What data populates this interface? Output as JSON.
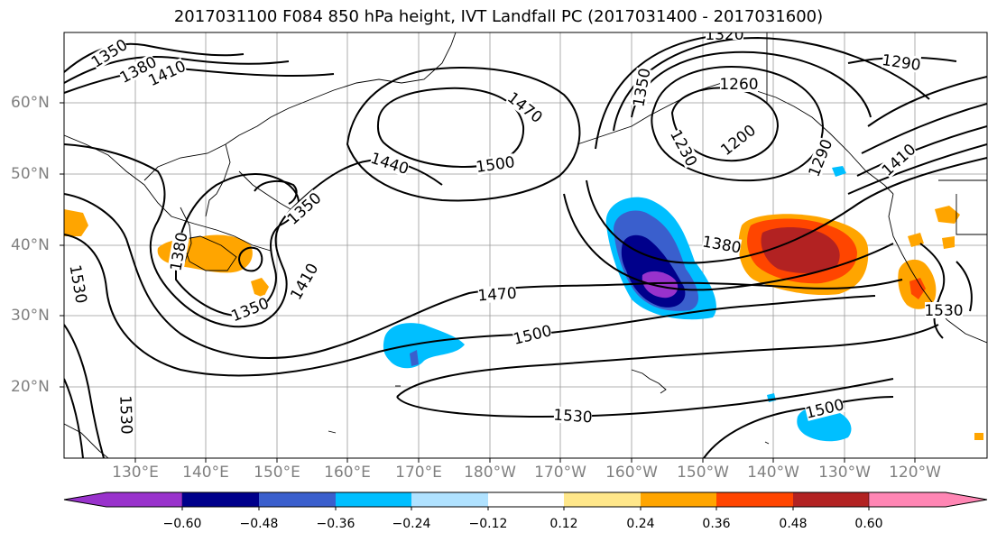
{
  "title": "2017031100 F084 850 hPa height, IVT Landfall PC (2017031400 - 2017031600)",
  "lat_labels": [
    "60°N",
    "50°N",
    "40°N",
    "30°N",
    "20°N"
  ],
  "lon_labels": [
    "130°E",
    "140°E",
    "150°E",
    "160°E",
    "170°E",
    "180°W",
    "170°W",
    "160°W",
    "150°W",
    "140°W",
    "130°W",
    "120°W"
  ],
  "contour_labels": [
    "1350",
    "1380",
    "1410",
    "1470",
    "1440",
    "1500",
    "1350",
    "1230",
    "1200",
    "1260",
    "1320",
    "1290",
    "1290",
    "1410",
    "1350",
    "1380",
    "1410",
    "1350",
    "1380",
    "1470",
    "1500",
    "1530",
    "1530",
    "1530",
    "1530",
    "1500"
  ],
  "colorbar": {
    "ticks": [
      "−0.60",
      "−0.48",
      "−0.36",
      "−0.24",
      "−0.12",
      "0.12",
      "0.24",
      "0.36",
      "0.48",
      "0.60"
    ],
    "colors": [
      "#9932cc",
      "#00008b",
      "#3a5fcd",
      "#00bfff",
      "#b0e2ff",
      "#ffffff",
      "#ffe78a",
      "#ffa500",
      "#ff4500",
      "#b22222",
      "#ff86b4"
    ]
  }
}
